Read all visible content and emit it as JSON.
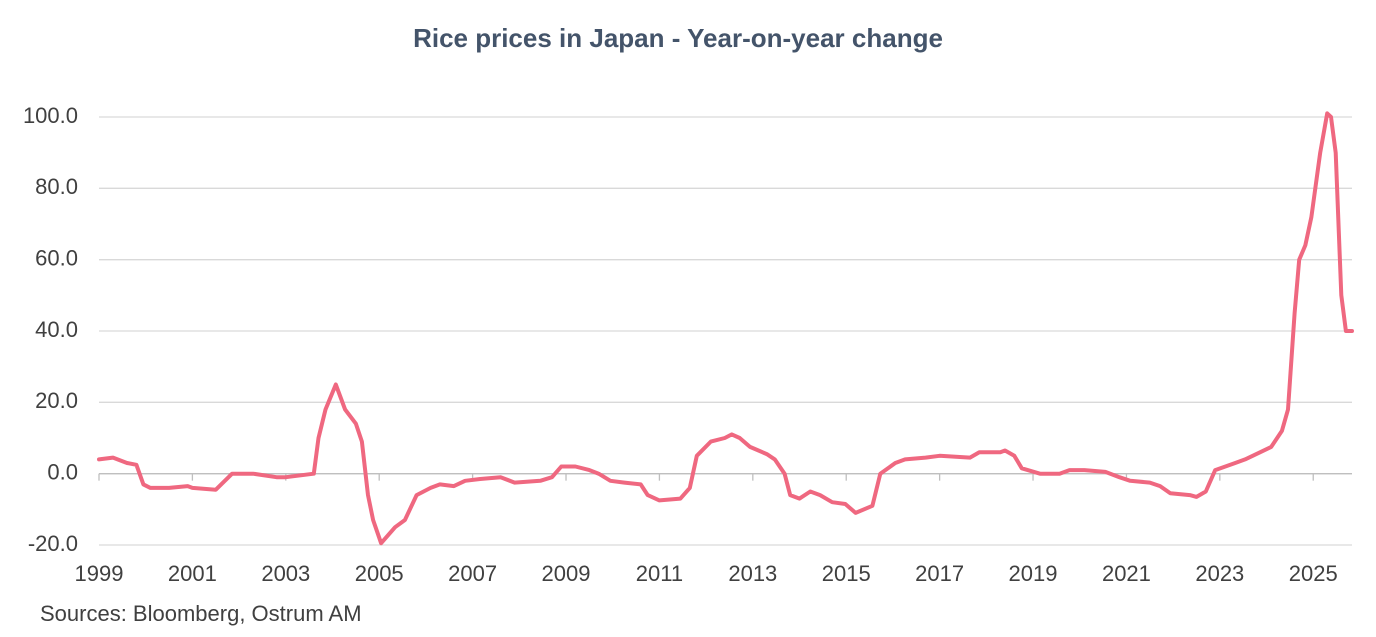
{
  "chart_data": {
    "type": "line",
    "title": "Rice prices in Japan - Year-on-year change",
    "source": "Sources: Bloomberg, Ostrum AM",
    "x": [
      1999.0,
      1999.3,
      1999.6,
      1999.8,
      1999.95,
      2000.1,
      2000.5,
      2000.9,
      2001.0,
      2001.5,
      2001.85,
      2002.3,
      2002.8,
      2003.0,
      2003.6,
      2003.7,
      2003.85,
      2004.07,
      2004.27,
      2004.5,
      2004.63,
      2004.76,
      2004.87,
      2005.04,
      2005.34,
      2005.55,
      2005.8,
      2006.1,
      2006.3,
      2006.6,
      2006.84,
      2007.16,
      2007.6,
      2007.9,
      2008.45,
      2008.7,
      2008.9,
      2009.2,
      2009.5,
      2009.7,
      2009.95,
      2010.25,
      2010.6,
      2010.75,
      2011.0,
      2011.45,
      2011.65,
      2011.8,
      2012.1,
      2012.4,
      2012.55,
      2012.72,
      2012.94,
      2013.3,
      2013.47,
      2013.68,
      2013.8,
      2014.0,
      2014.23,
      2014.44,
      2014.7,
      2014.98,
      2015.2,
      2015.56,
      2015.73,
      2016.05,
      2016.26,
      2016.7,
      2017.0,
      2017.65,
      2017.85,
      2018.3,
      2018.4,
      2018.6,
      2018.76,
      2019.15,
      2019.57,
      2019.78,
      2020.1,
      2020.55,
      2020.85,
      2021.08,
      2021.5,
      2021.72,
      2021.94,
      2022.36,
      2022.5,
      2022.7,
      2022.9,
      2023.33,
      2023.54,
      2023.86,
      2024.1,
      2024.33,
      2024.46,
      2024.6,
      2024.7,
      2024.83,
      2024.96,
      2025.15,
      2025.3,
      2025.38,
      2025.48,
      2025.6,
      2025.7,
      2025.83
    ],
    "series": [
      {
        "color": "#ef6880",
        "values": [
          4,
          4.5,
          3,
          2.5,
          -3,
          -4,
          -4,
          -3.5,
          -4,
          -4.5,
          0,
          0,
          -1,
          -1,
          0,
          10,
          18,
          25,
          18,
          14,
          9,
          -6,
          -13,
          -19.5,
          -15,
          -13,
          -6,
          -4,
          -3,
          -3.5,
          -2,
          -1.5,
          -1,
          -2.5,
          -2,
          -1,
          2,
          2,
          1,
          0,
          -2,
          -2.5,
          -3,
          -6,
          -7.5,
          -7,
          -4,
          5,
          9,
          10,
          11,
          10,
          7.5,
          5.5,
          4,
          0,
          -6,
          -7,
          -5,
          -6,
          -8,
          -8.5,
          -11,
          -9,
          0,
          3,
          4,
          4.5,
          5,
          4.5,
          6,
          6,
          6.5,
          5,
          1.5,
          0,
          0,
          1,
          1,
          0.5,
          -1,
          -2,
          -2.5,
          -3.5,
          -5.5,
          -6,
          -6.5,
          -5,
          1,
          3,
          4,
          6,
          7.5,
          12,
          18,
          45,
          60,
          64,
          72,
          90,
          101,
          100,
          90,
          50,
          40,
          40
        ]
      }
    ],
    "xlim": [
      1999,
      2025.83
    ],
    "xticks": [
      1999,
      2001,
      2003,
      2005,
      2007,
      2009,
      2011,
      2013,
      2015,
      2017,
      2019,
      2021,
      2023,
      2025
    ],
    "ylim": [
      -20,
      100
    ],
    "yticks": [
      {
        "value": -20,
        "label": "-20.0"
      },
      {
        "value": 0,
        "label": "0.0"
      },
      {
        "value": 20,
        "label": "20.0"
      },
      {
        "value": 40,
        "label": "40.0"
      },
      {
        "value": 60,
        "label": "60.0"
      },
      {
        "value": 80,
        "label": "80.0"
      },
      {
        "value": 100,
        "label": "100.0"
      }
    ],
    "grid": true
  }
}
